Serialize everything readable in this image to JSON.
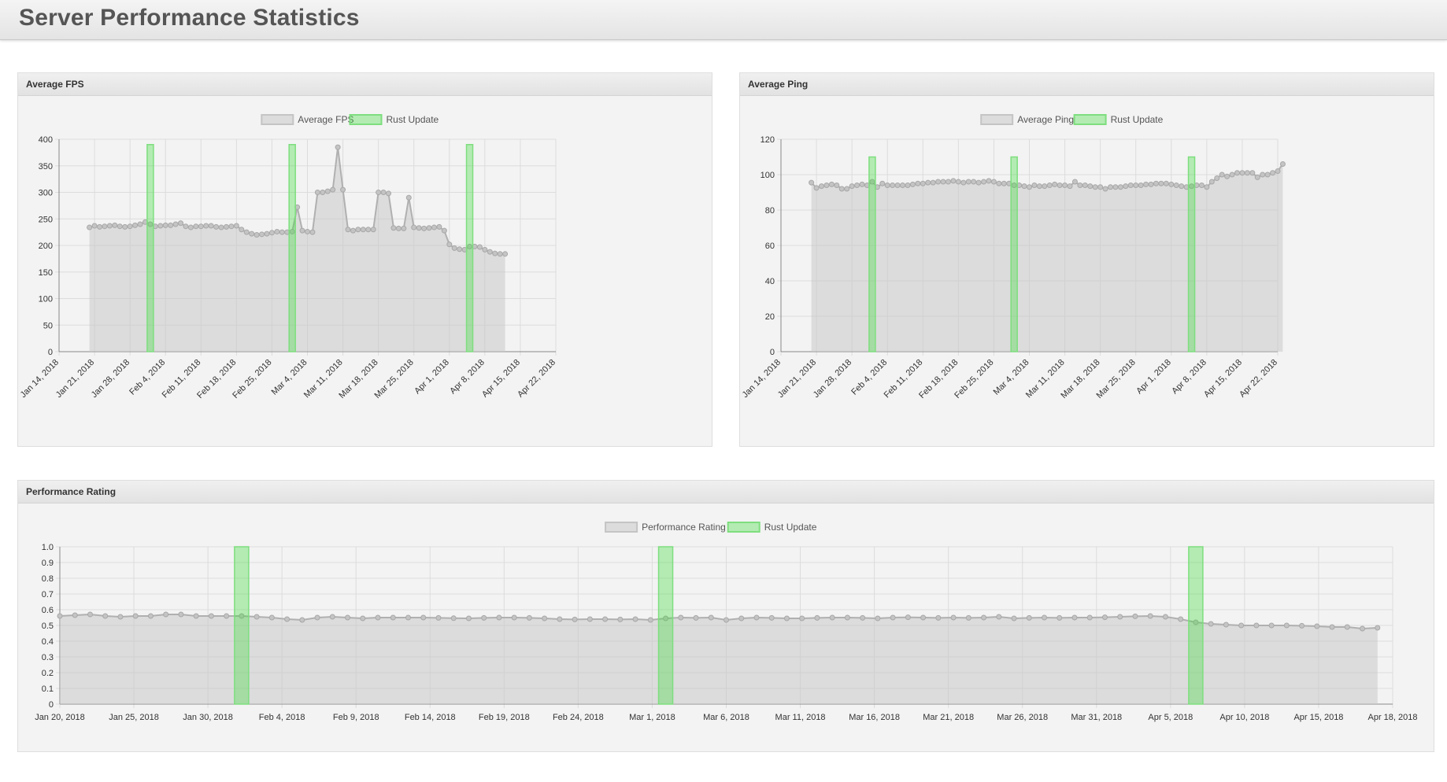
{
  "page": {
    "title": "Server Performance Statistics"
  },
  "colors": {
    "series_fill": "rgba(200,200,200,0.55)",
    "series_stroke": "#b0b0b0",
    "update_fill": "rgba(60,220,60,0.35)",
    "update_stroke": "#7ede7e",
    "grid": "#dcdcdc",
    "axis": "#888888",
    "text": "#555555"
  },
  "panels": {
    "fps": {
      "header": "Average FPS"
    },
    "ping": {
      "header": "Average Ping"
    },
    "rating": {
      "header": "Performance Rating"
    }
  },
  "chart_data": [
    {
      "id": "fps",
      "type": "line",
      "fill": true,
      "legend": [
        "Average FPS",
        "Rust Update"
      ],
      "legend_position": "top",
      "grid": true,
      "ylim": [
        0,
        400
      ],
      "y_ticks": [
        "0",
        "50",
        "100",
        "150",
        "200",
        "250",
        "300",
        "350",
        "400"
      ],
      "x_ticks": [
        "Jan 14, 2018",
        "Jan 21, 2018",
        "Jan 28, 2018",
        "Feb 4, 2018",
        "Feb 11, 2018",
        "Feb 18, 2018",
        "Feb 25, 2018",
        "Mar 4, 2018",
        "Mar 11, 2018",
        "Mar 18, 2018",
        "Mar 25, 2018",
        "Apr 1, 2018",
        "Apr 8, 2018",
        "Apr 15, 2018",
        "Apr 22, 2018"
      ],
      "x_start": "2018-01-20",
      "series": [
        {
          "name": "Average FPS",
          "values": [
            234,
            237,
            235,
            236,
            237,
            238,
            236,
            235,
            236,
            238,
            240,
            244,
            240,
            236,
            237,
            238,
            238,
            240,
            242,
            236,
            234,
            236,
            236,
            237,
            237,
            235,
            234,
            235,
            236,
            237,
            230,
            225,
            222,
            220,
            221,
            222,
            224,
            226,
            225,
            225,
            226,
            272,
            228,
            226,
            225,
            300,
            300,
            302,
            305,
            385,
            305,
            230,
            228,
            230,
            230,
            230,
            230,
            300,
            300,
            298,
            233,
            232,
            232,
            290,
            234,
            233,
            232,
            233,
            234,
            235,
            228,
            202,
            195,
            193,
            192,
            198,
            198,
            197,
            192,
            188,
            185,
            184,
            184
          ]
        }
      ],
      "updates": [
        {
          "name": "Rust Update",
          "date": "2018-02-01",
          "value": 390
        },
        {
          "name": "Rust Update",
          "date": "2018-03-01",
          "value": 390
        },
        {
          "name": "Rust Update",
          "date": "2018-04-05",
          "value": 390
        }
      ]
    },
    {
      "id": "ping",
      "type": "line",
      "fill": true,
      "legend": [
        "Average Ping",
        "Rust Update"
      ],
      "legend_position": "top",
      "grid": true,
      "ylim": [
        0,
        120
      ],
      "y_ticks": [
        "0",
        "20",
        "40",
        "60",
        "80",
        "100",
        "120"
      ],
      "x_ticks": [
        "Jan 14, 2018",
        "Jan 21, 2018",
        "Jan 28, 2018",
        "Feb 4, 2018",
        "Feb 11, 2018",
        "Feb 18, 2018",
        "Feb 25, 2018",
        "Mar 4, 2018",
        "Mar 11, 2018",
        "Mar 18, 2018",
        "Mar 25, 2018",
        "Apr 1, 2018",
        "Apr 8, 2018",
        "Apr 15, 2018",
        "Apr 22, 2018"
      ],
      "x_start": "2018-01-20",
      "series": [
        {
          "name": "Average Ping",
          "values": [
            95.5,
            92.5,
            93.5,
            94,
            94.5,
            94,
            92,
            92,
            93.5,
            94,
            94.5,
            94,
            96,
            93,
            95,
            94,
            94,
            94,
            94,
            94,
            94.5,
            95,
            95,
            95.5,
            95.5,
            96,
            96,
            96,
            96.5,
            96,
            95.5,
            96,
            96,
            95.5,
            96,
            96.5,
            96,
            95,
            95,
            95,
            94,
            94,
            93.5,
            93,
            94,
            93.5,
            93.5,
            94,
            94.5,
            94,
            94,
            93.5,
            96,
            94,
            94,
            93.5,
            93,
            93,
            92,
            93,
            93,
            93,
            93.5,
            94,
            94,
            94,
            94.5,
            94.5,
            95,
            95,
            95,
            94.5,
            94,
            93.5,
            93,
            93.5,
            94,
            94,
            93,
            96,
            98,
            100,
            99,
            100,
            101,
            101,
            101,
            101,
            98.5,
            100,
            100,
            101,
            102,
            106
          ]
        }
      ],
      "updates": [
        {
          "name": "Rust Update",
          "date": "2018-02-01",
          "value": 110
        },
        {
          "name": "Rust Update",
          "date": "2018-03-01",
          "value": 110
        },
        {
          "name": "Rust Update",
          "date": "2018-04-05",
          "value": 110
        }
      ]
    },
    {
      "id": "rating",
      "type": "line",
      "fill": true,
      "legend": [
        "Performance Rating",
        "Rust Update"
      ],
      "legend_position": "top",
      "grid": true,
      "ylim": [
        0,
        1.0
      ],
      "y_ticks": [
        "0",
        "0.1",
        "0.2",
        "0.3",
        "0.4",
        "0.5",
        "0.6",
        "0.7",
        "0.8",
        "0.9",
        "1.0"
      ],
      "x_ticks": [
        "Jan 20, 2018",
        "Jan 25, 2018",
        "Jan 30, 2018",
        "Feb 4, 2018",
        "Feb 9, 2018",
        "Feb 14, 2018",
        "Feb 19, 2018",
        "Feb 24, 2018",
        "Mar 1, 2018",
        "Mar 6, 2018",
        "Mar 11, 2018",
        "Mar 16, 2018",
        "Mar 21, 2018",
        "Mar 26, 2018",
        "Mar 31, 2018",
        "Apr 5, 2018",
        "Apr 10, 2018",
        "Apr 15, 2018",
        "Apr 18, 2018"
      ],
      "x_start": "2018-01-20",
      "series": [
        {
          "name": "Performance Rating",
          "values": [
            0.56,
            0.565,
            0.57,
            0.56,
            0.555,
            0.56,
            0.56,
            0.57,
            0.57,
            0.56,
            0.56,
            0.56,
            0.56,
            0.555,
            0.55,
            0.54,
            0.535,
            0.55,
            0.555,
            0.55,
            0.545,
            0.55,
            0.55,
            0.55,
            0.55,
            0.548,
            0.546,
            0.545,
            0.548,
            0.55,
            0.55,
            0.548,
            0.545,
            0.54,
            0.538,
            0.54,
            0.54,
            0.538,
            0.54,
            0.535,
            0.545,
            0.55,
            0.548,
            0.55,
            0.535,
            0.545,
            0.55,
            0.548,
            0.545,
            0.545,
            0.548,
            0.55,
            0.55,
            0.548,
            0.545,
            0.55,
            0.552,
            0.55,
            0.548,
            0.55,
            0.548,
            0.55,
            0.555,
            0.545,
            0.548,
            0.55,
            0.548,
            0.55,
            0.55,
            0.552,
            0.555,
            0.558,
            0.56,
            0.555,
            0.54,
            0.52,
            0.51,
            0.505,
            0.5,
            0.5,
            0.5,
            0.5,
            0.498,
            0.495,
            0.49,
            0.49,
            0.48,
            0.485
          ]
        }
      ],
      "updates": [
        {
          "name": "Rust Update",
          "date": "2018-02-01",
          "value": 1.0
        },
        {
          "name": "Rust Update",
          "date": "2018-03-01",
          "value": 1.0
        },
        {
          "name": "Rust Update",
          "date": "2018-04-05",
          "value": 1.0
        }
      ]
    }
  ]
}
